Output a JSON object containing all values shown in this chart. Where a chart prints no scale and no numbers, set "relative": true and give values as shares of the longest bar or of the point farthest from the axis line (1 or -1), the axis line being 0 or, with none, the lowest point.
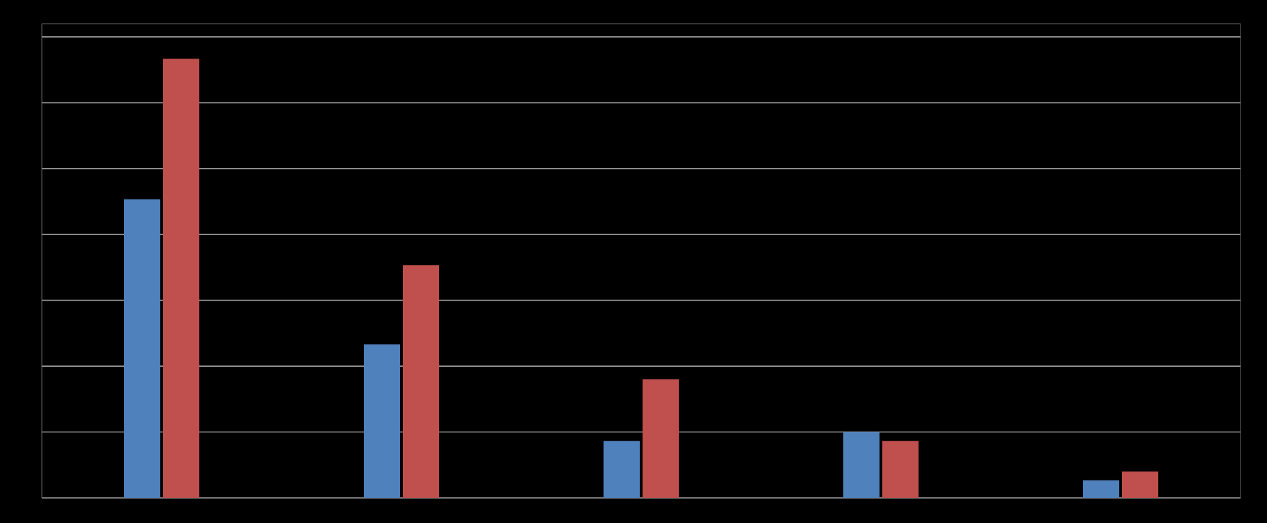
{
  "chart_data": {
    "type": "bar",
    "relative": true,
    "grid": "y",
    "categories": [
      null,
      null,
      null,
      null,
      null
    ],
    "series": [
      {
        "color": "#4f81bd",
        "values": [
          0.68,
          0.35,
          0.13,
          0.15,
          0.04
        ]
      },
      {
        "color": "#c0504d",
        "values": [
          1.0,
          0.53,
          0.27,
          0.13,
          0.06
        ]
      }
    ]
  }
}
